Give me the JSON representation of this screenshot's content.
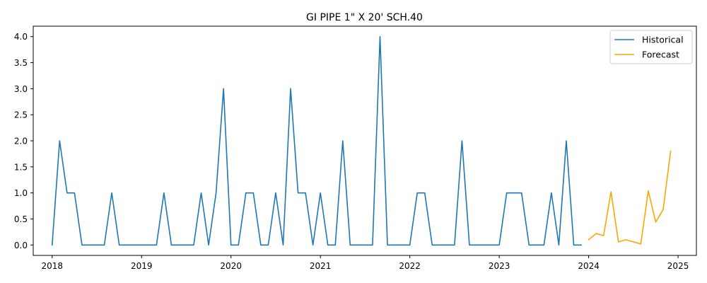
{
  "chart_data": {
    "type": "line",
    "title": "GI PIPE 1\" X 20' SCH.40",
    "xlabel": "",
    "ylabel": "",
    "xlim": [
      "2017-10-15",
      "2025-03-15"
    ],
    "ylim": [
      -0.2,
      4.2
    ],
    "x_ticks": [
      "2018",
      "2019",
      "2020",
      "2021",
      "2022",
      "2023",
      "2024",
      "2025"
    ],
    "y_ticks": [
      "0.0",
      "0.5",
      "1.0",
      "1.5",
      "2.0",
      "2.5",
      "3.0",
      "3.5",
      "4.0"
    ],
    "grid": false,
    "legend_position": "top-right",
    "series": [
      {
        "name": "Historical",
        "color": "#1f77b4",
        "x": [
          "2018-01",
          "2018-02",
          "2018-03",
          "2018-04",
          "2018-05",
          "2018-06",
          "2018-07",
          "2018-08",
          "2018-09",
          "2018-10",
          "2018-11",
          "2018-12",
          "2019-01",
          "2019-02",
          "2019-03",
          "2019-04",
          "2019-05",
          "2019-06",
          "2019-07",
          "2019-08",
          "2019-09",
          "2019-10",
          "2019-11",
          "2019-12",
          "2020-01",
          "2020-02",
          "2020-03",
          "2020-04",
          "2020-05",
          "2020-06",
          "2020-07",
          "2020-08",
          "2020-09",
          "2020-10",
          "2020-11",
          "2020-12",
          "2021-01",
          "2021-02",
          "2021-03",
          "2021-04",
          "2021-05",
          "2021-06",
          "2021-07",
          "2021-08",
          "2021-09",
          "2021-10",
          "2021-11",
          "2021-12",
          "2022-01",
          "2022-02",
          "2022-03",
          "2022-04",
          "2022-05",
          "2022-06",
          "2022-07",
          "2022-08",
          "2022-09",
          "2022-10",
          "2022-11",
          "2022-12",
          "2023-01",
          "2023-02",
          "2023-03",
          "2023-04",
          "2023-05",
          "2023-06",
          "2023-07",
          "2023-08",
          "2023-09",
          "2023-10",
          "2023-11",
          "2023-12"
        ],
        "values": [
          0,
          2,
          1,
          1,
          0,
          0,
          0,
          0,
          1,
          0,
          0,
          0,
          0,
          0,
          0,
          1,
          0,
          0,
          0,
          0,
          1,
          0,
          1,
          3,
          0,
          0,
          1,
          1,
          0,
          0,
          1,
          0,
          3,
          1,
          1,
          0,
          1,
          0,
          0,
          2,
          0,
          0,
          0,
          0,
          4,
          0,
          0,
          0,
          0,
          1,
          1,
          0,
          0,
          0,
          0,
          2,
          0,
          0,
          0,
          0,
          0,
          1,
          1,
          1,
          0,
          0,
          0,
          1,
          0,
          2,
          0,
          0
        ]
      },
      {
        "name": "Forecast",
        "color": "#ffa500",
        "x": [
          "2024-01",
          "2024-02",
          "2024-03",
          "2024-04",
          "2024-05",
          "2024-06",
          "2024-07",
          "2024-08",
          "2024-09",
          "2024-10",
          "2024-11",
          "2024-12"
        ],
        "values": [
          0.1,
          0.22,
          0.18,
          1.02,
          0.06,
          0.1,
          0.06,
          0.02,
          1.04,
          0.44,
          0.68,
          1.8
        ]
      }
    ]
  }
}
